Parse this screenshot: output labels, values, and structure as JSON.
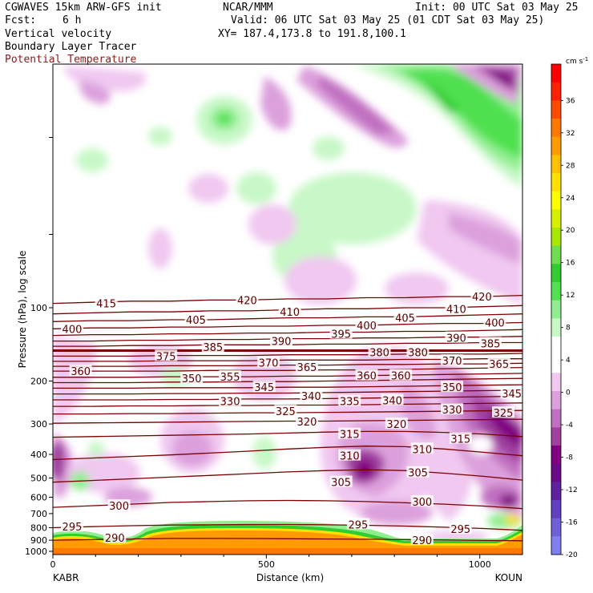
{
  "header": {
    "model": "CGWAVES 15km ARW-GFS init",
    "fcst_label": "Fcst:",
    "fcst_value": "6 h",
    "center": "NCAR/MMM",
    "init": "Init: 00 UTC Sat 03 May 25",
    "valid": "Valid: 06 UTC Sat 03 May 25 (01 CDT Sat 03 May 25)",
    "xy": "XY= 187.4,173.8 to 191.8,100.1",
    "field1": "Vertical velocity",
    "field2": "Boundary Layer Tracer",
    "field3": "Potential Temperature",
    "field3_color": "#8b1a1a"
  },
  "colorbar": {
    "units": "cm s",
    "units_exp": "-1",
    "labels": [
      "36",
      "32",
      "28",
      "24",
      "20",
      "16",
      "12",
      "8",
      "4",
      "0",
      "-4",
      "-8",
      "-12",
      "-16",
      "-20"
    ],
    "colors": [
      "#ff0000",
      "#ff2000",
      "#ff4a00",
      "#ff7800",
      "#ff9a00",
      "#ffc000",
      "#ffe000",
      "#ffff00",
      "#d6f000",
      "#a8e800",
      "#70dd50",
      "#30cc30",
      "#50e050",
      "#90ee90",
      "#c8f8c8",
      "#ffffff",
      "#ffffff",
      "#f0c8f0",
      "#dca0dc",
      "#c070c0",
      "#a040a0",
      "#800080",
      "#6a0a8a",
      "#6020a0",
      "#6040c0",
      "#7060d8",
      "#8080ee"
    ]
  },
  "chart_data": {
    "type": "cross-section",
    "xlabel": "Distance (km)",
    "ylabel": "Pressure (hPa), log scale",
    "x_ticks": [
      "0",
      "500",
      "1000"
    ],
    "x_left_station": "KABR",
    "x_right_station": "KOUN",
    "y_ticks": [
      "100",
      "200",
      "300",
      "400",
      "500",
      "600",
      "700",
      "800",
      "900",
      "1000"
    ],
    "xlim": [
      0,
      1100
    ],
    "y_scale": "log",
    "theta_series": [
      {
        "theta": 415,
        "p": [
          96,
          95,
          94,
          94,
          93,
          93,
          92,
          92,
          91,
          91,
          90,
          90,
          89
        ]
      },
      {
        "theta": 410,
        "p": [
          106,
          105,
          104,
          104,
          103,
          103,
          102,
          101,
          101,
          100,
          100,
          99,
          98
        ]
      },
      {
        "theta": 405,
        "p": [
          114,
          113,
          113,
          112,
          112,
          111,
          110,
          110,
          109,
          109,
          108,
          107,
          106
        ]
      },
      {
        "theta": 400,
        "p": [
          122,
          121,
          121,
          120,
          120,
          119,
          119,
          118,
          118,
          117,
          116,
          116,
          115
        ]
      },
      {
        "theta": 395,
        "p": [
          130,
          129,
          129,
          128,
          128,
          127,
          127,
          126,
          126,
          125,
          125,
          124,
          123
        ]
      },
      {
        "theta": 390,
        "p": [
          137,
          137,
          136,
          136,
          135,
          135,
          134,
          134,
          133,
          133,
          132,
          132,
          131
        ]
      },
      {
        "theta": 385,
        "p": [
          144,
          144,
          143,
          143,
          142,
          142,
          142,
          141,
          141,
          140,
          140,
          139,
          139
        ]
      },
      {
        "theta": 380,
        "p": [
          150,
          150,
          150,
          150,
          150,
          150,
          150,
          150,
          150,
          150,
          150,
          150,
          150
        ]
      },
      {
        "theta": 375,
        "p": [
          158,
          158,
          158,
          157,
          157,
          157,
          156,
          156,
          156,
          155,
          155,
          155,
          154
        ]
      },
      {
        "theta": 370,
        "p": [
          166,
          166,
          166,
          165,
          165,
          165,
          164,
          164,
          164,
          163,
          163,
          162,
          162
        ]
      },
      {
        "theta": 365,
        "p": [
          174,
          174,
          174,
          173,
          173,
          173,
          172,
          172,
          171,
          171,
          170,
          170,
          169
        ]
      },
      {
        "theta": 360,
        "p": [
          182,
          182,
          182,
          182,
          181,
          181,
          181,
          180,
          180,
          179,
          178,
          177,
          176
        ]
      },
      {
        "theta": 355,
        "p": [
          193,
          193,
          193,
          192,
          192,
          192,
          191,
          191,
          190,
          189,
          188,
          187,
          186
        ]
      },
      {
        "theta": 350,
        "p": [
          203,
          203,
          203,
          202,
          202,
          201,
          201,
          200,
          199,
          198,
          197,
          196,
          195
        ]
      },
      {
        "theta": 345,
        "p": [
          214,
          214,
          214,
          213,
          213,
          213,
          212,
          212,
          211,
          210,
          209,
          208,
          207
        ]
      },
      {
        "theta": 340,
        "p": [
          226,
          226,
          226,
          225,
          225,
          224,
          224,
          223,
          222,
          221,
          220,
          219,
          218
        ]
      },
      {
        "theta": 335,
        "p": [
          239,
          239,
          239,
          238,
          238,
          237,
          237,
          236,
          235,
          234,
          233,
          232,
          231
        ]
      },
      {
        "theta": 330,
        "p": [
          254,
          254,
          253,
          253,
          252,
          252,
          251,
          251,
          250,
          249,
          248,
          247,
          246
        ]
      },
      {
        "theta": 325,
        "p": [
          273,
          273,
          272,
          272,
          271,
          270,
          270,
          269,
          268,
          267,
          266,
          265,
          264
        ]
      },
      {
        "theta": 320,
        "p": [
          298,
          297,
          296,
          295,
          294,
          293,
          292,
          292,
          291,
          290,
          289,
          288,
          287
        ]
      },
      {
        "theta": 315,
        "p": [
          340,
          338,
          336,
          334,
          332,
          330,
          327,
          324,
          322,
          322,
          325,
          330,
          338
        ]
      },
      {
        "theta": 310,
        "p": [
          420,
          414,
          408,
          402,
          395,
          388,
          380,
          374,
          370,
          372,
          380,
          392,
          405
        ]
      },
      {
        "theta": 305,
        "p": [
          520,
          512,
          504,
          496,
          488,
          480,
          472,
          466,
          462,
          466,
          478,
          492,
          510
        ]
      },
      {
        "theta": 300,
        "p": [
          660,
          650,
          640,
          630,
          625,
          620,
          618,
          620,
          625,
          632,
          640,
          652,
          668
        ]
      },
      {
        "theta": 295,
        "p": [
          800,
          792,
          785,
          780,
          778,
          776,
          776,
          778,
          782,
          788,
          796,
          806,
          820
        ]
      },
      {
        "theta": 290,
        "p": [
          900,
          895,
          890,
          885,
          885,
          886,
          888,
          890,
          892,
          895,
          898,
          902,
          905
        ]
      }
    ],
    "theta_labels": [
      {
        "text": "415",
        "x": 125,
        "p": 96
      },
      {
        "text": "420",
        "x": 455,
        "p": 93
      },
      {
        "text": "420",
        "x": 1005,
        "p": 90
      },
      {
        "text": "410",
        "x": 555,
        "p": 104
      },
      {
        "text": "410",
        "x": 945,
        "p": 101
      },
      {
        "text": "400",
        "x": 45,
        "p": 122
      },
      {
        "text": "405",
        "x": 335,
        "p": 112
      },
      {
        "text": "405",
        "x": 825,
        "p": 110
      },
      {
        "text": "400",
        "x": 1035,
        "p": 115
      },
      {
        "text": "395",
        "x": 675,
        "p": 128
      },
      {
        "text": "400",
        "x": 735,
        "p": 118
      },
      {
        "text": "390",
        "x": 535,
        "p": 137
      },
      {
        "text": "390",
        "x": 945,
        "p": 133
      },
      {
        "text": "385",
        "x": 375,
        "p": 145
      },
      {
        "text": "385",
        "x": 1025,
        "p": 140
      },
      {
        "text": "375",
        "x": 265,
        "p": 158
      },
      {
        "text": "380",
        "x": 765,
        "p": 152
      },
      {
        "text": "380",
        "x": 855,
        "p": 152
      },
      {
        "text": "370",
        "x": 505,
        "p": 168
      },
      {
        "text": "370",
        "x": 935,
        "p": 165
      },
      {
        "text": "360",
        "x": 65,
        "p": 182
      },
      {
        "text": "365",
        "x": 595,
        "p": 175
      },
      {
        "text": "365",
        "x": 1045,
        "p": 170
      },
      {
        "text": "355",
        "x": 415,
        "p": 192
      },
      {
        "text": "360",
        "x": 735,
        "p": 190
      },
      {
        "text": "360",
        "x": 815,
        "p": 190
      },
      {
        "text": "350",
        "x": 325,
        "p": 195
      },
      {
        "text": "345",
        "x": 495,
        "p": 212
      },
      {
        "text": "350",
        "x": 935,
        "p": 212
      },
      {
        "text": "340",
        "x": 605,
        "p": 230
      },
      {
        "text": "345",
        "x": 1075,
        "p": 225
      },
      {
        "text": "330",
        "x": 415,
        "p": 242
      },
      {
        "text": "335",
        "x": 695,
        "p": 242
      },
      {
        "text": "340",
        "x": 795,
        "p": 240
      },
      {
        "text": "325",
        "x": 545,
        "p": 266
      },
      {
        "text": "325",
        "x": 1055,
        "p": 270
      },
      {
        "text": "330",
        "x": 935,
        "p": 262
      },
      {
        "text": "320",
        "x": 595,
        "p": 293
      },
      {
        "text": "320",
        "x": 805,
        "p": 300
      },
      {
        "text": "315",
        "x": 695,
        "p": 330
      },
      {
        "text": "315",
        "x": 955,
        "p": 345
      },
      {
        "text": "310",
        "x": 695,
        "p": 405
      },
      {
        "text": "310",
        "x": 865,
        "p": 380
      },
      {
        "text": "305",
        "x": 675,
        "p": 520
      },
      {
        "text": "305",
        "x": 855,
        "p": 475
      },
      {
        "text": "300",
        "x": 155,
        "p": 650
      },
      {
        "text": "300",
        "x": 865,
        "p": 625
      },
      {
        "text": "295",
        "x": 45,
        "p": 792
      },
      {
        "text": "295",
        "x": 715,
        "p": 776
      },
      {
        "text": "295",
        "x": 955,
        "p": 810
      },
      {
        "text": "290",
        "x": 145,
        "p": 880
      },
      {
        "text": "290",
        "x": 865,
        "p": 898
      }
    ]
  }
}
